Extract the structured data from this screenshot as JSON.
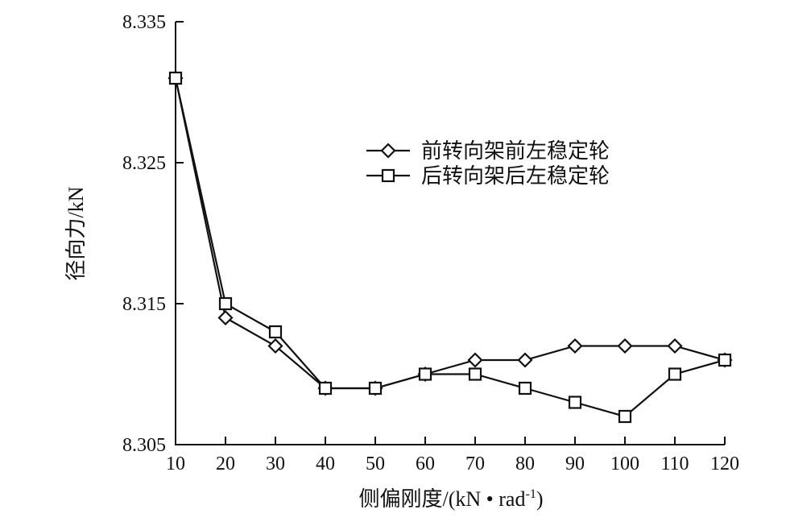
{
  "chart_data": {
    "type": "line",
    "xlabel": "侧偏刚度/(kN • rad",
    "xlabel_sup": "-1",
    "xlabel_suffix": ")",
    "ylabel": "径向力/kN",
    "x": [
      10,
      20,
      30,
      40,
      50,
      60,
      70,
      80,
      90,
      100,
      110,
      120
    ],
    "x_tick_labels": [
      "10",
      "20",
      "30",
      "40",
      "50",
      "60",
      "70",
      "80",
      "90",
      "100",
      "110",
      "120"
    ],
    "y_tick_values": [
      8.305,
      8.315,
      8.325,
      8.335
    ],
    "y_tick_labels": [
      "8.305",
      "8.315",
      "8.325",
      "8.335"
    ],
    "xlim": [
      10,
      120
    ],
    "ylim": [
      8.305,
      8.335
    ],
    "grid": false,
    "legend_position": "upper-right",
    "series": [
      {
        "name": "前转向架前左稳定轮",
        "marker": "diamond",
        "values": [
          8.331,
          8.314,
          8.312,
          8.309,
          8.309,
          8.31,
          8.311,
          8.311,
          8.312,
          8.312,
          8.312,
          8.311
        ]
      },
      {
        "name": "后转向架后左稳定轮",
        "marker": "square",
        "values": [
          8.331,
          8.315,
          8.313,
          8.309,
          8.309,
          8.31,
          8.31,
          8.309,
          8.308,
          8.307,
          8.31,
          8.311
        ]
      }
    ]
  }
}
